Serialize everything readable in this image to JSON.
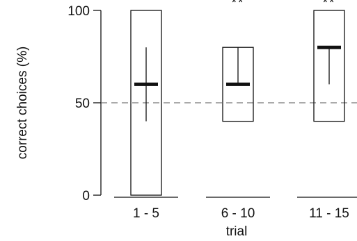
{
  "chart_data": {
    "type": "box",
    "xlabel": "trial",
    "ylabel": "correct choices (%)",
    "ylim": [
      0,
      100
    ],
    "yticks": [
      {
        "value": 0,
        "label": "0"
      },
      {
        "value": 50,
        "label": "50"
      },
      {
        "value": 100,
        "label": "100"
      }
    ],
    "reference_line": {
      "value": 50,
      "style": "dashed"
    },
    "categories": [
      "1 - 5",
      "6 - 10",
      "11 - 15"
    ],
    "boxes": [
      {
        "category": "1 - 5",
        "box_low": 0,
        "box_high": 100,
        "median": 60,
        "whisker_low": 40,
        "whisker_high": 80,
        "significance": ""
      },
      {
        "category": "6 - 10",
        "box_low": 40,
        "box_high": 80,
        "median": 60,
        "whisker_low": 60,
        "whisker_high": 80,
        "significance": "**"
      },
      {
        "category": "11 - 15",
        "box_low": 40,
        "box_high": 100,
        "median": 80,
        "whisker_low": 60,
        "whisker_high": 80,
        "significance": "**"
      }
    ],
    "grid": false,
    "colors": {
      "ink": "#111111",
      "reference": "#555555"
    }
  }
}
